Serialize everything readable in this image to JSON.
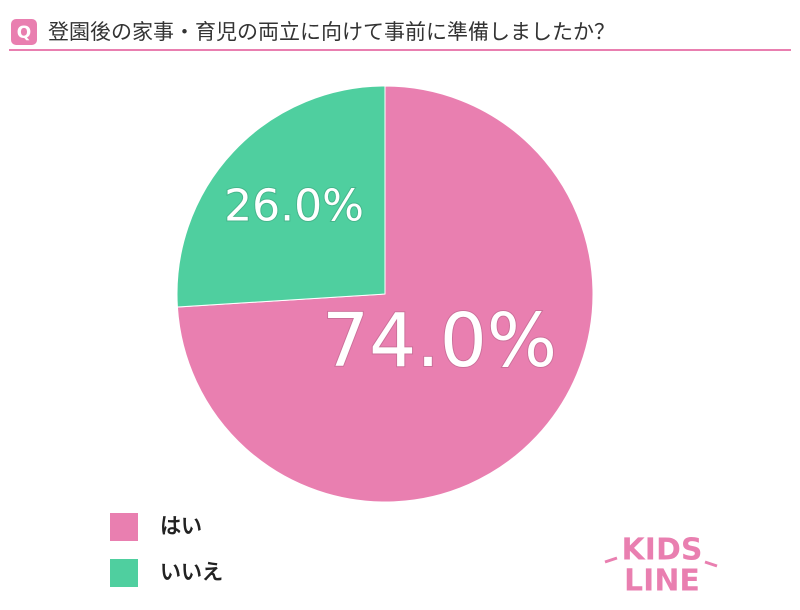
{
  "header": {
    "badge": "Q"
  },
  "chart_data": {
    "type": "pie",
    "title": "登園後の家事・育児の両立に向けて事前に準備しましたか？",
    "categories": [
      "はい",
      "いいえ"
    ],
    "values": [
      74.0,
      26.0
    ],
    "value_labels": [
      "74.0%",
      "26.0%"
    ],
    "colors": [
      "#e97fb0",
      "#4fcf9f"
    ],
    "legend": "bottom-left"
  },
  "logo": {
    "line1": "KIDS",
    "line2": "LINE"
  }
}
